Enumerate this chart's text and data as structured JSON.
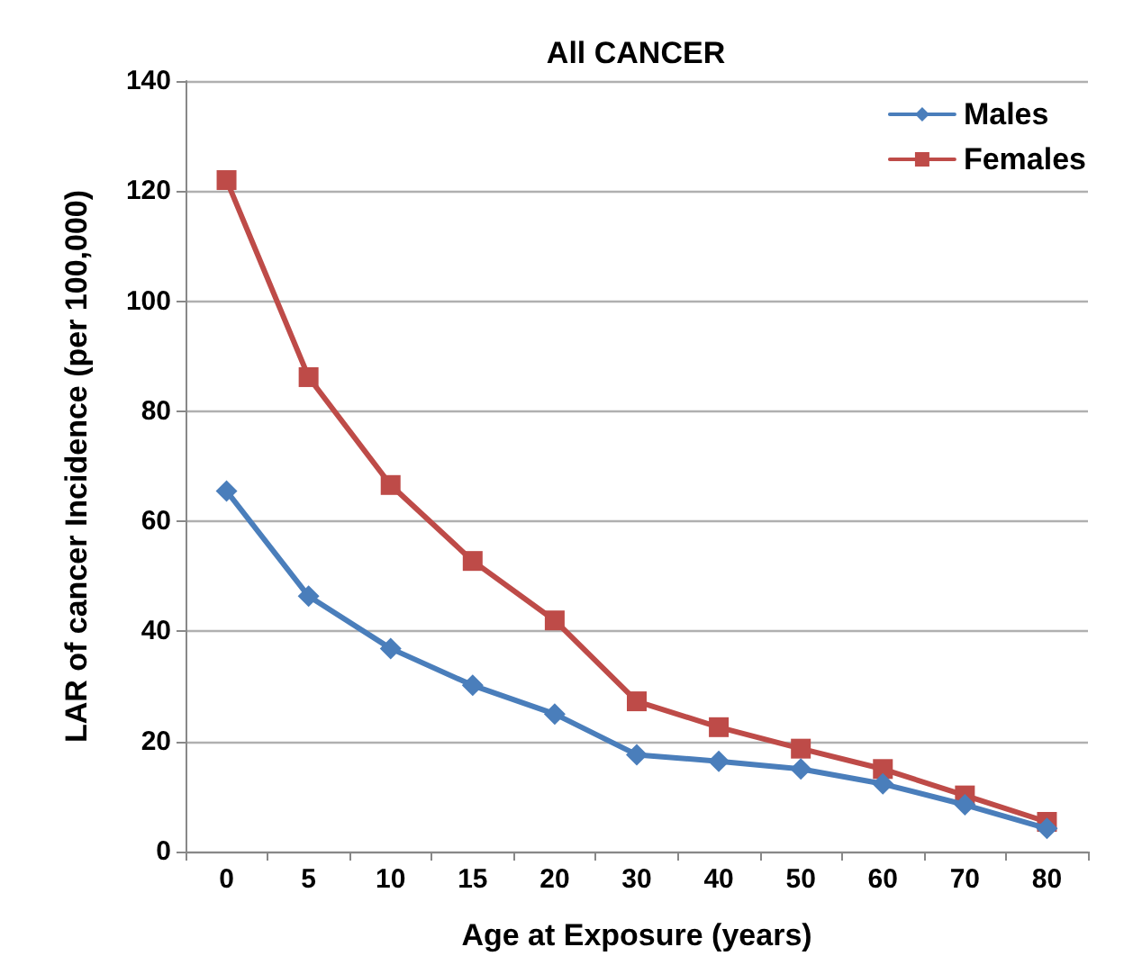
{
  "chart_data": {
    "type": "line",
    "title": "All CANCER",
    "xlabel": "Age at Exposure (years)",
    "ylabel": "LAR of cancer Incidence (per 100,000)",
    "categories": [
      "0",
      "5",
      "10",
      "15",
      "20",
      "30",
      "40",
      "50",
      "60",
      "70",
      "80"
    ],
    "series": [
      {
        "name": "Males",
        "color": "#4a7ebb",
        "marker": "diamond",
        "values": [
          65.5,
          46.4,
          36.9,
          30.2,
          25,
          17.6,
          16.4,
          15,
          12.3,
          8.5,
          4.2
        ]
      },
      {
        "name": "Females",
        "color": "#be4b48",
        "marker": "square",
        "values": [
          122,
          86.2,
          66.6,
          52.8,
          42,
          27.3,
          22.6,
          18.7,
          15,
          10.2,
          5.4
        ]
      }
    ],
    "ylim": [
      0,
      140
    ],
    "yticks": [
      0,
      20,
      40,
      60,
      80,
      100,
      120,
      140
    ],
    "grid": "y",
    "legend": "top right",
    "line_style": "solid"
  }
}
